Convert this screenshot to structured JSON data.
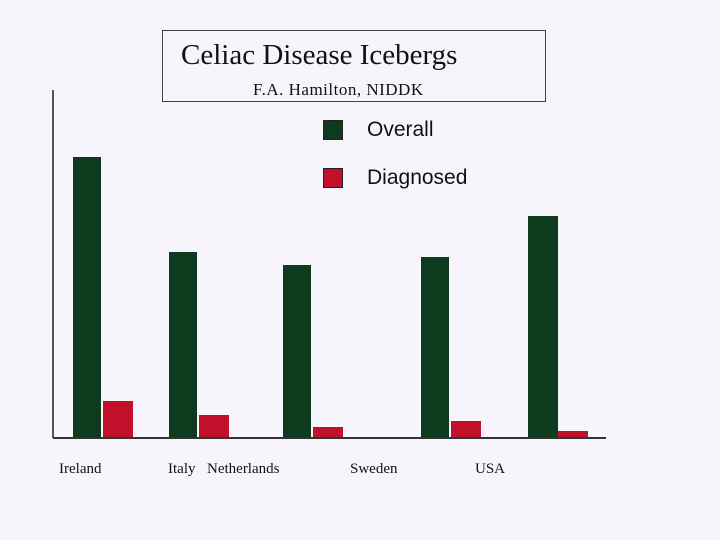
{
  "title": "Celiac Disease Icebergs",
  "subtitle": "F.A. Hamilton, NIDDK",
  "legend": [
    {
      "label": "Overall",
      "color": "#0e3a1e",
      "icon": "dark-green-square"
    },
    {
      "label": "Diagnosed",
      "color": "#c0102a",
      "icon": "red-square"
    }
  ],
  "chart_data": {
    "type": "bar",
    "title": "Celiac Disease Icebergs",
    "subtitle": "F.A. Hamilton, NIDDK",
    "xlabel": "",
    "ylabel": "",
    "categories": [
      "Ireland",
      "Italy",
      "Netherlands",
      "Sweden",
      "USA"
    ],
    "series": [
      {
        "name": "Overall",
        "color": "#0e3a1e",
        "values": [
          280,
          185,
          172,
          180,
          221
        ]
      },
      {
        "name": "Diagnosed",
        "color": "#c0102a",
        "values": [
          36,
          22,
          10,
          16,
          6
        ]
      }
    ],
    "ylim": [
      0,
      350
    ],
    "grid": false,
    "legend_position": "top-right",
    "tick_labels": [
      "Ireland",
      "Italy",
      "Netherlands",
      "Sweden",
      "USA"
    ]
  }
}
